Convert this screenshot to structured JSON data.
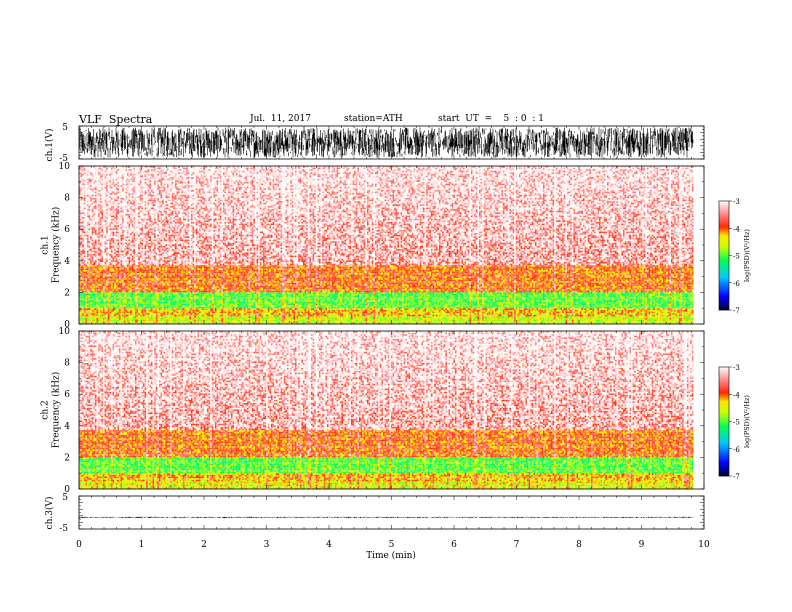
{
  "header": {
    "title": "VLF  Spectra",
    "date": "Jul.  11, 2017",
    "station": "station=ATH",
    "start_ut": "start  UT  =    5  : 0  : 1"
  },
  "colors": {
    "waveform": "#000000",
    "spectrogram_low": "#000060",
    "spectrogram_high": "#ffffff"
  },
  "chart_data": [
    {
      "type": "line",
      "name": "ch1-waveform",
      "ylabel": "ch.1(V)",
      "ylim": [
        -5,
        5
      ],
      "yticks": [
        "5",
        "-5"
      ],
      "xlim": [
        0,
        10
      ],
      "data_extent_min": [
        0,
        9.83
      ],
      "amplitude_range": [
        -4.6,
        4.6
      ]
    },
    {
      "type": "heatmap",
      "name": "ch1-spectrogram",
      "ylabel": "ch.1\nFrequency (kHz)",
      "ylim": [
        0,
        10
      ],
      "yticks": [
        "0",
        "2",
        "4",
        "6",
        "8",
        "10"
      ],
      "xlim": [
        0,
        10
      ],
      "colorbar": {
        "label": "log(PSD)(V²/Hz)",
        "range": [
          -7,
          -3
        ],
        "ticks": [
          "-3",
          "-4",
          "-5",
          "-6",
          "-7"
        ]
      },
      "bands_khz": [
        {
          "range": [
            0,
            0.5
          ],
          "level": -4.6
        },
        {
          "range": [
            0.5,
            1.0
          ],
          "level": -4.3
        },
        {
          "range": [
            1.0,
            2.0
          ],
          "level": -5.0
        },
        {
          "range": [
            2.0,
            3.8
          ],
          "level": -4.0
        },
        {
          "range": [
            3.8,
            10.0
          ],
          "level": -3.6
        }
      ]
    },
    {
      "type": "heatmap",
      "name": "ch2-spectrogram",
      "ylabel": "ch.2\nFrequency (kHz)",
      "ylim": [
        0,
        10
      ],
      "yticks": [
        "0",
        "2",
        "4",
        "6",
        "8",
        "10"
      ],
      "xlim": [
        0,
        10
      ],
      "colorbar": {
        "label": "log(PSD)(V²/Hz)",
        "range": [
          -7,
          -3
        ],
        "ticks": [
          "-3",
          "-4",
          "-5",
          "-6",
          "-7"
        ]
      },
      "bands_khz": [
        {
          "range": [
            0,
            0.5
          ],
          "level": -4.5
        },
        {
          "range": [
            0.5,
            1.0
          ],
          "level": -4.3
        },
        {
          "range": [
            1.0,
            2.0
          ],
          "level": -5.0
        },
        {
          "range": [
            2.0,
            3.8
          ],
          "level": -4.0
        },
        {
          "range": [
            3.8,
            10.0
          ],
          "level": -3.6
        }
      ]
    },
    {
      "type": "line",
      "name": "ch3-waveform",
      "ylabel": "ch.3(V)",
      "ylim": [
        -5,
        5
      ],
      "yticks": [
        "5",
        "-5"
      ],
      "xlim": [
        0,
        10
      ],
      "xlabel": "Time  (min)",
      "xticks": [
        "0",
        "1",
        "2",
        "3",
        "4",
        "5",
        "6",
        "7",
        "8",
        "9",
        "10"
      ],
      "amplitude_range": [
        -0.2,
        0.2
      ],
      "offset": -1.5
    }
  ]
}
